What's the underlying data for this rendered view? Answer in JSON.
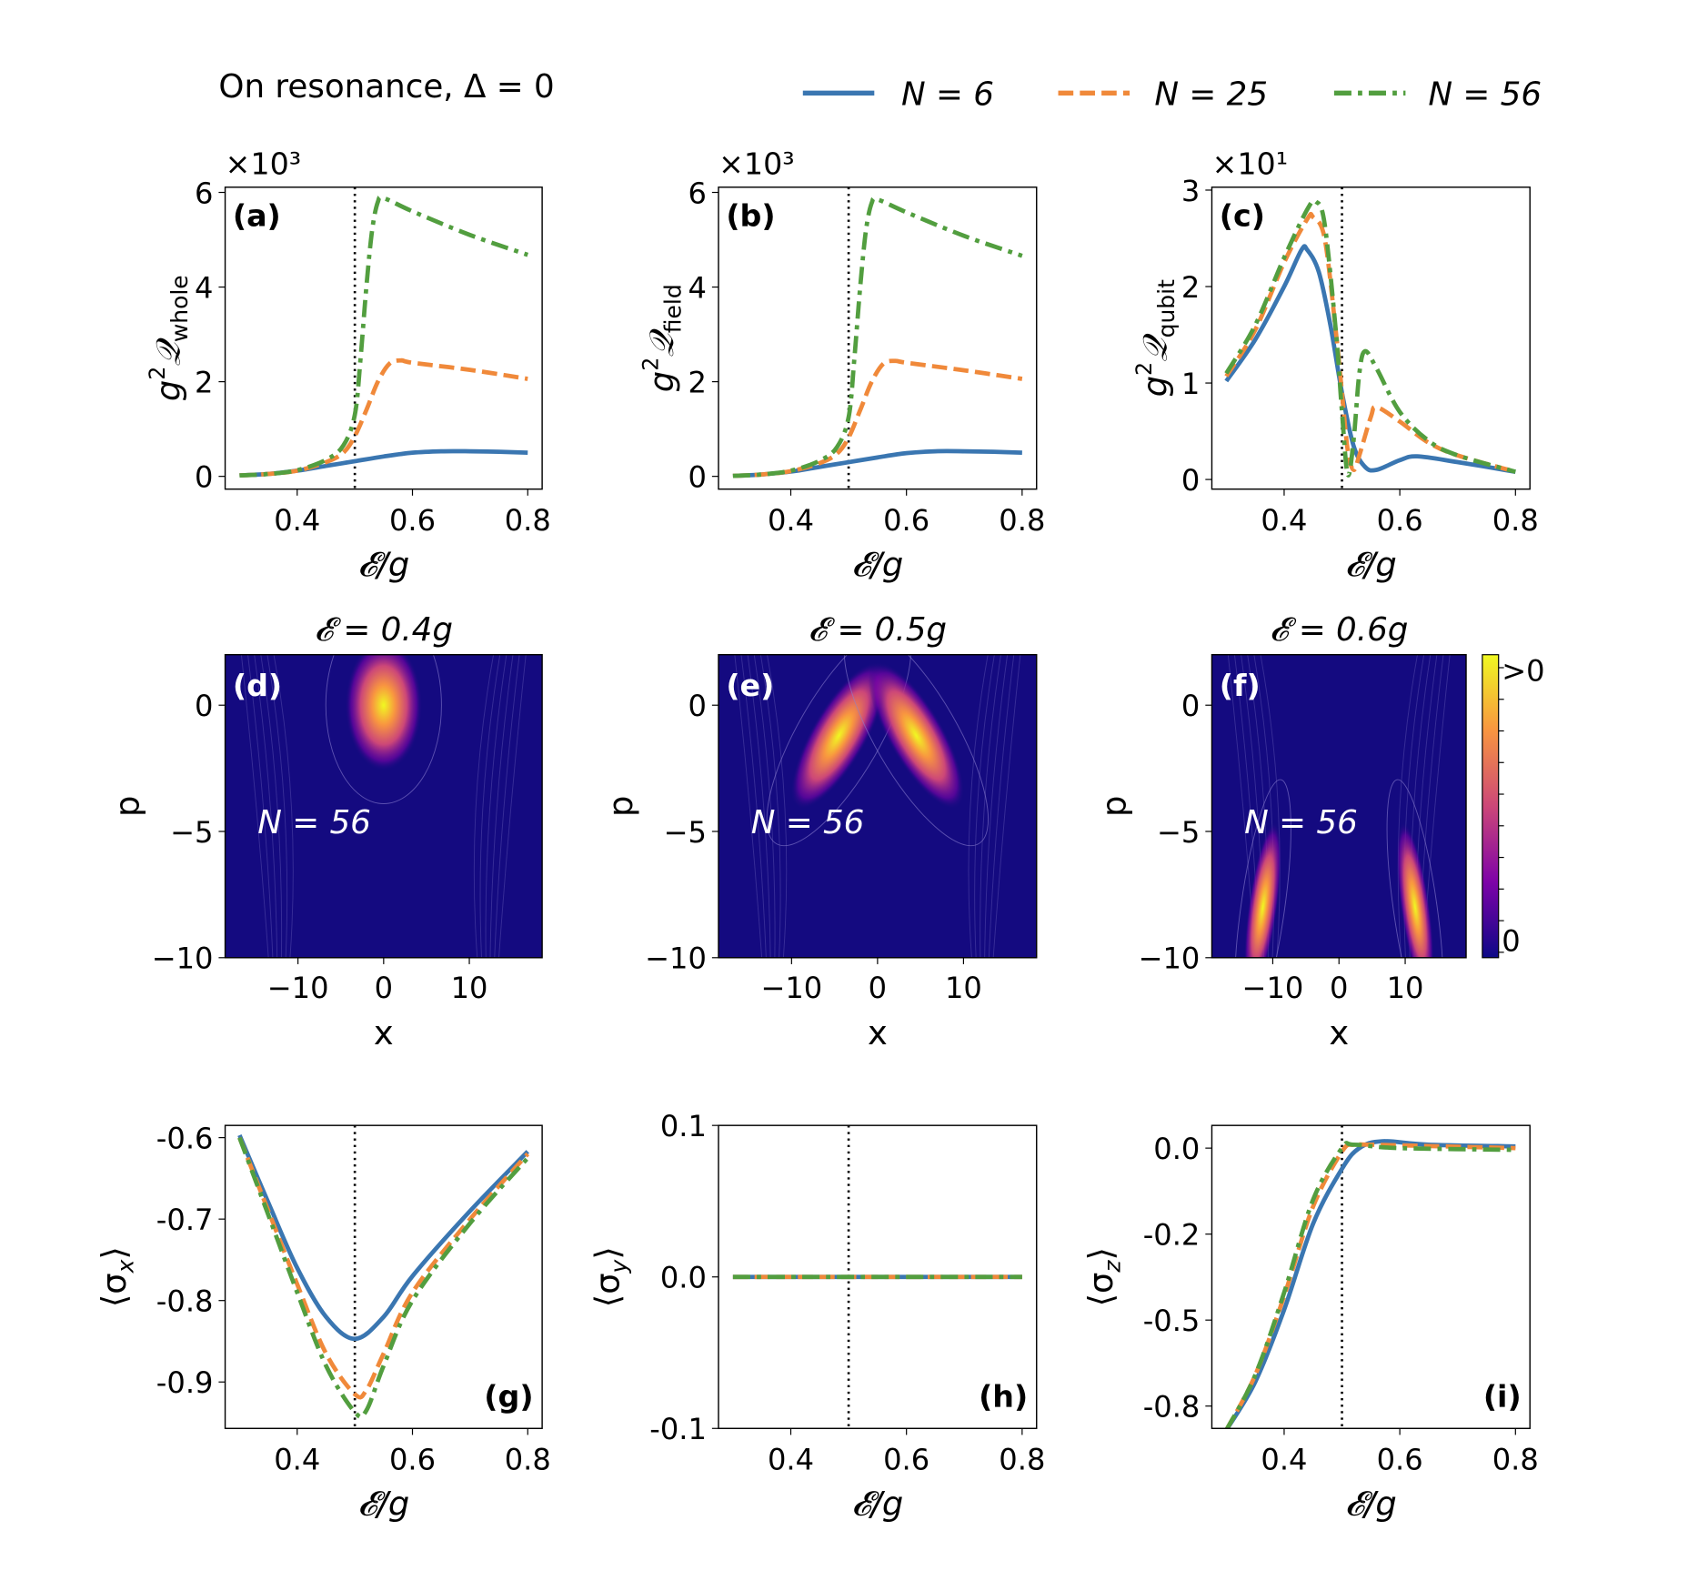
{
  "header": {
    "title": "On resonance, Δ = 0"
  },
  "legend": {
    "placement": "top-right",
    "entries": [
      {
        "label": "N = 6",
        "color": "#3a76b1",
        "style": "solid"
      },
      {
        "label": "N = 25",
        "color": "#f0893a",
        "style": "dashed"
      },
      {
        "label": "N = 56",
        "color": "#529e3f",
        "style": "dashdot"
      }
    ]
  },
  "colors": {
    "heatmap_background": "#140a80",
    "colormap": "plasma",
    "guide_line": "#000000"
  },
  "chart_data": [
    {
      "type": "line",
      "panel_label": "(a)",
      "ylabel": {
        "base": "g",
        "sup": "2",
        "sym": "𝒬",
        "sub": "whole"
      },
      "xlabel": "𝓔/g",
      "multiplier": "×10³",
      "xlim": [
        0.275,
        0.825
      ],
      "ylim": [
        -0.27,
        6.11
      ],
      "xticks": [
        "0.4",
        "0.6",
        "0.8"
      ],
      "yticks": [
        "0",
        "2",
        "4",
        "6"
      ],
      "vline": 0.5,
      "series": [
        {
          "name": "N = 6",
          "x": [
            0.3,
            0.35,
            0.4,
            0.45,
            0.5,
            0.55,
            0.6,
            0.65,
            0.7,
            0.75,
            0.8
          ],
          "y": [
            0.02,
            0.05,
            0.12,
            0.22,
            0.32,
            0.42,
            0.5,
            0.53,
            0.53,
            0.52,
            0.5
          ]
        },
        {
          "name": "N = 25",
          "x": [
            0.3,
            0.35,
            0.4,
            0.45,
            0.48,
            0.5,
            0.52,
            0.54,
            0.56,
            0.58,
            0.6,
            0.7,
            0.8
          ],
          "y": [
            0.02,
            0.05,
            0.12,
            0.3,
            0.5,
            0.85,
            1.4,
            2.0,
            2.38,
            2.45,
            2.4,
            2.25,
            2.06
          ]
        },
        {
          "name": "N = 56",
          "x": [
            0.3,
            0.35,
            0.4,
            0.45,
            0.48,
            0.5,
            0.51,
            0.52,
            0.53,
            0.54,
            0.55,
            0.6,
            0.7,
            0.8
          ],
          "y": [
            0.02,
            0.05,
            0.13,
            0.35,
            0.65,
            1.3,
            2.5,
            4.0,
            5.2,
            5.8,
            5.88,
            5.6,
            5.1,
            4.68
          ]
        }
      ]
    },
    {
      "type": "line",
      "panel_label": "(b)",
      "ylabel": {
        "base": "g",
        "sup": "2",
        "sym": "𝒬",
        "sub": "field"
      },
      "xlabel": "𝓔/g",
      "multiplier": "×10³",
      "xlim": [
        0.275,
        0.825
      ],
      "ylim": [
        -0.27,
        6.11
      ],
      "xticks": [
        "0.4",
        "0.6",
        "0.8"
      ],
      "yticks": [
        "0",
        "2",
        "4",
        "6"
      ],
      "vline": 0.5,
      "series": [
        {
          "name": "N = 6",
          "x": [
            0.3,
            0.35,
            0.4,
            0.45,
            0.5,
            0.55,
            0.6,
            0.65,
            0.7,
            0.75,
            0.8
          ],
          "y": [
            0.01,
            0.04,
            0.1,
            0.2,
            0.3,
            0.4,
            0.49,
            0.53,
            0.53,
            0.52,
            0.5
          ]
        },
        {
          "name": "N = 25",
          "x": [
            0.3,
            0.35,
            0.4,
            0.45,
            0.48,
            0.5,
            0.52,
            0.54,
            0.56,
            0.58,
            0.6,
            0.7,
            0.8
          ],
          "y": [
            0.01,
            0.04,
            0.11,
            0.28,
            0.48,
            0.82,
            1.4,
            2.0,
            2.38,
            2.44,
            2.4,
            2.24,
            2.06
          ]
        },
        {
          "name": "N = 56",
          "x": [
            0.3,
            0.35,
            0.4,
            0.45,
            0.48,
            0.5,
            0.51,
            0.52,
            0.53,
            0.54,
            0.55,
            0.6,
            0.7,
            0.8
          ],
          "y": [
            0.01,
            0.04,
            0.12,
            0.33,
            0.62,
            1.25,
            2.5,
            4.0,
            5.2,
            5.78,
            5.85,
            5.58,
            5.08,
            4.66
          ]
        }
      ]
    },
    {
      "type": "line",
      "panel_label": "(c)",
      "ylabel": {
        "base": "g",
        "sup": "2",
        "sym": "𝒬",
        "sub": "qubit"
      },
      "xlabel": "𝓔/g",
      "multiplier": "×10¹",
      "xlim": [
        0.275,
        0.825
      ],
      "ylim": [
        -0.1,
        3.03
      ],
      "xticks": [
        "0.4",
        "0.6",
        "0.8"
      ],
      "yticks": [
        "0",
        "1",
        "2",
        "3"
      ],
      "vline": 0.5,
      "series": [
        {
          "name": "N = 6",
          "x": [
            0.3,
            0.35,
            0.4,
            0.43,
            0.44,
            0.46,
            0.48,
            0.5,
            0.52,
            0.54,
            0.56,
            0.6,
            0.63,
            0.7,
            0.8
          ],
          "y": [
            1.02,
            1.45,
            2.0,
            2.38,
            2.38,
            2.15,
            1.6,
            0.9,
            0.35,
            0.13,
            0.1,
            0.2,
            0.24,
            0.18,
            0.08
          ]
        },
        {
          "name": "N = 25",
          "x": [
            0.3,
            0.35,
            0.4,
            0.44,
            0.45,
            0.47,
            0.49,
            0.5,
            0.51,
            0.52,
            0.53,
            0.55,
            0.56,
            0.6,
            0.65,
            0.7,
            0.8
          ],
          "y": [
            1.07,
            1.55,
            2.25,
            2.7,
            2.72,
            2.5,
            1.5,
            0.9,
            0.3,
            0.1,
            0.25,
            0.65,
            0.75,
            0.6,
            0.38,
            0.25,
            0.08
          ]
        },
        {
          "name": "N = 56",
          "x": [
            0.3,
            0.35,
            0.4,
            0.44,
            0.455,
            0.47,
            0.49,
            0.5,
            0.51,
            0.52,
            0.53,
            0.54,
            0.56,
            0.6,
            0.65,
            0.7,
            0.8
          ],
          "y": [
            1.1,
            1.6,
            2.3,
            2.8,
            2.88,
            2.65,
            1.5,
            0.7,
            0.05,
            0.4,
            1.1,
            1.33,
            1.15,
            0.7,
            0.4,
            0.25,
            0.08
          ]
        }
      ]
    },
    {
      "type": "heatmap",
      "panel_label": "(d)",
      "title": "𝓔 = 0.4g",
      "annotation": "N = 56",
      "xlabel": "x",
      "ylabel": "p",
      "xlim": [
        -18.5,
        18.5
      ],
      "ylim": [
        -10,
        2
      ],
      "xticks": [
        "−10",
        "0",
        "10"
      ],
      "yticks": [
        "0",
        "−5",
        "−10"
      ],
      "peaks": [
        {
          "x": 0,
          "p": 0
        }
      ]
    },
    {
      "type": "heatmap",
      "panel_label": "(e)",
      "title": "𝓔 = 0.5g",
      "annotation": "N = 56",
      "xlabel": "x",
      "ylabel": "p",
      "xlim": [
        -18.5,
        18.5
      ],
      "ylim": [
        -10,
        2
      ],
      "xticks": [
        "−10",
        "0",
        "10"
      ],
      "yticks": [
        "0",
        "−5",
        "−10"
      ],
      "peaks": [
        {
          "x": -4.5,
          "p": -1.2
        },
        {
          "x": 4.5,
          "p": -1.2
        }
      ]
    },
    {
      "type": "heatmap",
      "panel_label": "(f)",
      "title": "𝓔 = 0.6g",
      "annotation": "N = 56",
      "xlabel": "x",
      "ylabel": "p",
      "xlim": [
        -19.2,
        19.2
      ],
      "ylim": [
        -10,
        2
      ],
      "xticks": [
        "−10",
        "0",
        "10"
      ],
      "yticks": [
        "0",
        "−5",
        "−10"
      ],
      "peaks": [
        {
          "x": -11.5,
          "p": -8
        },
        {
          "x": 11.5,
          "p": -8
        }
      ],
      "colorbar": {
        "ticks": [
          ">0",
          "0"
        ]
      }
    },
    {
      "type": "line",
      "panel_label": "(g)",
      "ylabel": {
        "text": "⟨σ",
        "sub": "x",
        "end": "⟩"
      },
      "xlabel": "𝓔/g",
      "xlim": [
        0.275,
        0.825
      ],
      "ylim": [
        -0.957,
        -0.585
      ],
      "xticks": [
        "0.4",
        "0.6",
        "0.8"
      ],
      "yticks": [
        "-0.6",
        "-0.7",
        "-0.8",
        "-0.9"
      ],
      "vline": 0.5,
      "series": [
        {
          "name": "N = 6",
          "x": [
            0.3,
            0.35,
            0.4,
            0.45,
            0.5,
            0.55,
            0.6,
            0.7,
            0.8
          ],
          "y": [
            -0.597,
            -0.68,
            -0.76,
            -0.82,
            -0.847,
            -0.82,
            -0.77,
            -0.69,
            -0.617
          ]
        },
        {
          "name": "N = 25",
          "x": [
            0.3,
            0.35,
            0.4,
            0.45,
            0.5,
            0.52,
            0.55,
            0.6,
            0.7,
            0.8
          ],
          "y": [
            -0.6,
            -0.69,
            -0.78,
            -0.865,
            -0.915,
            -0.91,
            -0.865,
            -0.79,
            -0.7,
            -0.62
          ]
        },
        {
          "name": "N = 56",
          "x": [
            0.3,
            0.35,
            0.4,
            0.45,
            0.5,
            0.52,
            0.55,
            0.6,
            0.7,
            0.8
          ],
          "y": [
            -0.6,
            -0.695,
            -0.79,
            -0.88,
            -0.937,
            -0.935,
            -0.88,
            -0.8,
            -0.705,
            -0.625
          ]
        }
      ]
    },
    {
      "type": "line",
      "panel_label": "(h)",
      "ylabel": {
        "text": "⟨σ",
        "sub": "y",
        "end": "⟩"
      },
      "xlabel": "𝓔/g",
      "xlim": [
        0.275,
        0.825
      ],
      "ylim": [
        -0.1,
        0.1
      ],
      "xticks": [
        "0.4",
        "0.6",
        "0.8"
      ],
      "yticks": [
        "0.1",
        "0.0",
        "-0.1"
      ],
      "vline": 0.5,
      "series": [
        {
          "name": "N = 6",
          "x": [
            0.3,
            0.8
          ],
          "y": [
            0,
            0
          ]
        },
        {
          "name": "N = 25",
          "x": [
            0.3,
            0.8
          ],
          "y": [
            0,
            0
          ]
        },
        {
          "name": "N = 56",
          "x": [
            0.3,
            0.8
          ],
          "y": [
            0,
            0
          ]
        }
      ]
    },
    {
      "type": "line",
      "panel_label": "(i)",
      "ylabel": {
        "text": "⟨σ",
        "sub": "z",
        "end": "⟩"
      },
      "xlabel": "𝓔/g",
      "xlim": [
        0.275,
        0.825
      ],
      "ylim": [
        -0.815,
        0.066
      ],
      "xticks": [
        "0.4",
        "0.6",
        "0.8"
      ],
      "yticks": [
        "0.0",
        "-0.2",
        "-0.5",
        "-0.8"
      ],
      "ytick_values": [
        0,
        -0.25,
        -0.5,
        -0.75
      ],
      "vline": 0.5,
      "series": [
        {
          "name": "N = 6",
          "x": [
            0.3,
            0.35,
            0.4,
            0.45,
            0.5,
            0.53,
            0.57,
            0.65,
            0.8
          ],
          "y": [
            -0.82,
            -0.68,
            -0.47,
            -0.22,
            -0.06,
            0.0,
            0.02,
            0.01,
            0.005
          ]
        },
        {
          "name": "N = 25",
          "x": [
            0.3,
            0.35,
            0.4,
            0.45,
            0.5,
            0.52,
            0.55,
            0.8
          ],
          "y": [
            -0.82,
            -0.66,
            -0.43,
            -0.17,
            -0.01,
            0.01,
            0.01,
            0.0
          ]
        },
        {
          "name": "N = 56",
          "x": [
            0.3,
            0.35,
            0.4,
            0.45,
            0.5,
            0.52,
            0.6,
            0.8
          ],
          "y": [
            -0.82,
            -0.66,
            -0.42,
            -0.15,
            0.0,
            0.01,
            0.0,
            -0.005
          ]
        }
      ]
    }
  ]
}
